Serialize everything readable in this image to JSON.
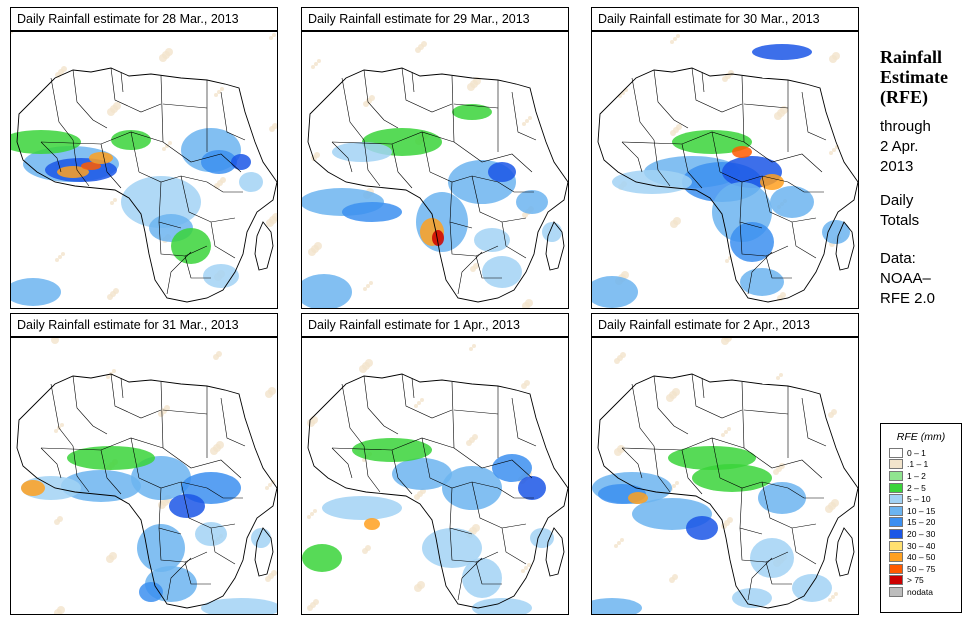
{
  "panels": [
    {
      "title": "Daily Rainfall estimate for  28 Mar., 2013"
    },
    {
      "title": "Daily Rainfall estimate for  29 Mar., 2013"
    },
    {
      "title": "Daily Rainfall estimate for  30 Mar., 2013"
    },
    {
      "title": "Daily Rainfall estimate for  31 Mar., 2013"
    },
    {
      "title": "Daily Rainfall estimate for  1 Apr., 2013"
    },
    {
      "title": "Daily Rainfall estimate for  2 Apr., 2013"
    }
  ],
  "sidebar": {
    "title_lines": [
      "Rainfall",
      "Estimate",
      "(RFE)"
    ],
    "through_lines": [
      "through",
      "2 Apr.",
      "2013"
    ],
    "totals_lines": [
      "Daily",
      "Totals"
    ],
    "data_lines": [
      "Data:",
      "NOAA–",
      "RFE 2.0"
    ]
  },
  "legend": {
    "title": "RFE (mm)",
    "items": [
      {
        "label": "0 – 1",
        "color": "#ffffff"
      },
      {
        "label": ".1 – 1",
        "color": "#f2e4cc"
      },
      {
        "label": "1 – 2",
        "color": "#90e490"
      },
      {
        "label": "2 – 5",
        "color": "#3ad43a"
      },
      {
        "label": "5 – 10",
        "color": "#a2d2f4"
      },
      {
        "label": "10 – 15",
        "color": "#6cb4f0"
      },
      {
        "label": "15 – 20",
        "color": "#3c8ff0"
      },
      {
        "label": "20 – 30",
        "color": "#1b56e6"
      },
      {
        "label": "30 – 40",
        "color": "#ffe070"
      },
      {
        "label": "40 – 50",
        "color": "#ffa020"
      },
      {
        "label": "50 – 75",
        "color": "#ff5a00"
      },
      {
        "label": "> 75",
        "color": "#cc0000"
      },
      {
        "label": "nodata",
        "color": "#bdbdbd"
      }
    ]
  },
  "map_colors": {
    "coast": "#000000",
    "sea": "#ffffff",
    "land": "#ffffff"
  }
}
